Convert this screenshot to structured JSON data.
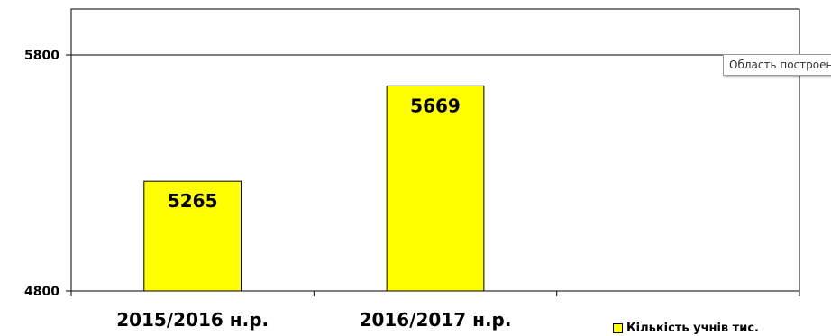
{
  "chart_data": {
    "type": "bar",
    "categories": [
      "2015/2016 н.р.",
      "2016/2017 н.р.",
      ""
    ],
    "series": [
      {
        "name": "Кількість учнів тис.",
        "values": [
          5265,
          5669,
          null
        ],
        "color": "#ffff00"
      }
    ],
    "y_ticks": [
      "5800",
      "4800"
    ],
    "ylim": [
      4800,
      5800
    ],
    "title": "",
    "xlabel": "",
    "ylabel": "",
    "grid": false,
    "legend_position": "bottom-right"
  },
  "tooltip": {
    "text": "Область построения диаграммы"
  }
}
